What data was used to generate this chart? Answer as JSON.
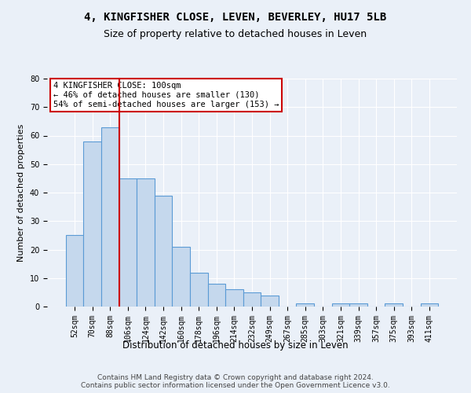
{
  "title": "4, KINGFISHER CLOSE, LEVEN, BEVERLEY, HU17 5LB",
  "subtitle": "Size of property relative to detached houses in Leven",
  "xlabel": "Distribution of detached houses by size in Leven",
  "ylabel": "Number of detached properties",
  "categories": [
    "52sqm",
    "70sqm",
    "88sqm",
    "106sqm",
    "124sqm",
    "142sqm",
    "160sqm",
    "178sqm",
    "196sqm",
    "214sqm",
    "232sqm",
    "249sqm",
    "267sqm",
    "285sqm",
    "303sqm",
    "321sqm",
    "339sqm",
    "357sqm",
    "375sqm",
    "393sqm",
    "411sqm"
  ],
  "values": [
    25,
    58,
    63,
    45,
    45,
    39,
    21,
    12,
    8,
    6,
    5,
    4,
    0,
    1,
    0,
    1,
    1,
    0,
    1,
    0,
    1
  ],
  "bar_color": "#c5d8ed",
  "bar_edge_color": "#5b9bd5",
  "vline_x": 2.5,
  "vline_color": "#cc0000",
  "annotation_lines": [
    "4 KINGFISHER CLOSE: 100sqm",
    "← 46% of detached houses are smaller (130)",
    "54% of semi-detached houses are larger (153) →"
  ],
  "annotation_box_color": "white",
  "annotation_box_edge_color": "#cc0000",
  "ylim": [
    0,
    80
  ],
  "yticks": [
    0,
    10,
    20,
    30,
    40,
    50,
    60,
    70,
    80
  ],
  "bg_color": "#eaf0f8",
  "plot_bg_color": "#eaf0f8",
  "footer": "Contains HM Land Registry data © Crown copyright and database right 2024.\nContains public sector information licensed under the Open Government Licence v3.0.",
  "title_fontsize": 10,
  "subtitle_fontsize": 9,
  "xlabel_fontsize": 8.5,
  "ylabel_fontsize": 8,
  "tick_fontsize": 7,
  "footer_fontsize": 6.5
}
